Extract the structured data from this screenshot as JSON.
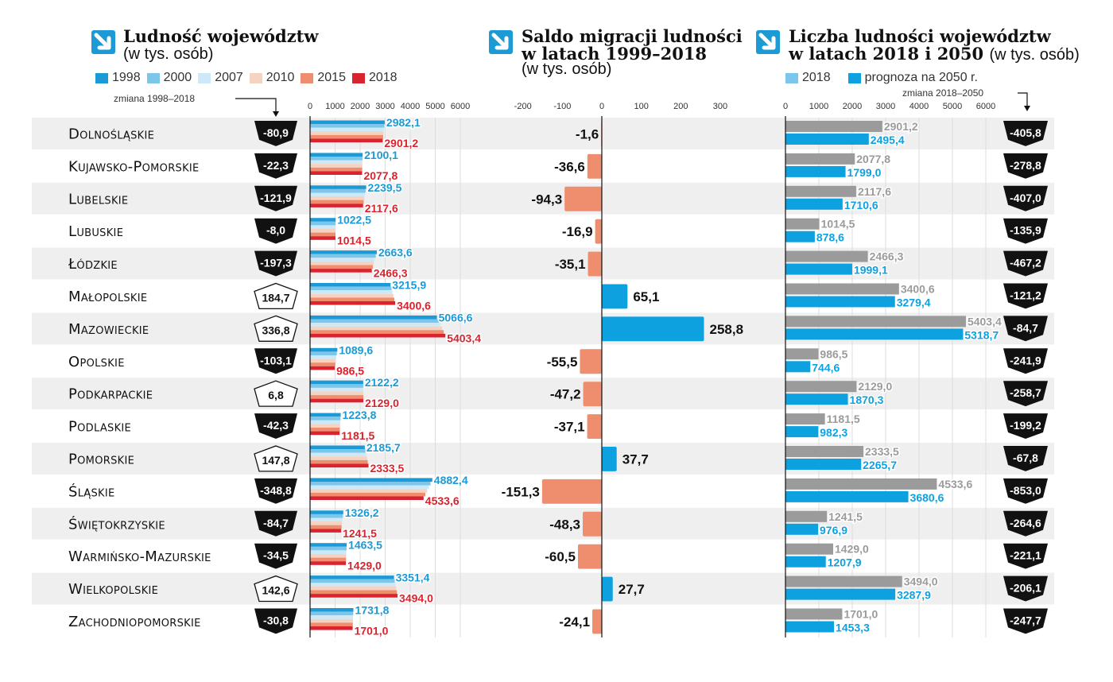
{
  "panels": {
    "population": {
      "title": "Ludność  województw",
      "subtitle": "(w tys. osób)",
      "change_note": "zmiana 1998–2018",
      "axis_ticks": [
        "0",
        "1000",
        "2000",
        "3000",
        "4000",
        "5000",
        "6000"
      ]
    },
    "migration": {
      "title_line1": "Saldo migracji ludności",
      "title_line2": "w latach 1999–2018",
      "subtitle": "(w tys. osób)",
      "axis_ticks": [
        "-200",
        "-100",
        "0",
        "100",
        "200",
        "300"
      ]
    },
    "forecast": {
      "title_line1": "Liczba  ludności województw",
      "title_line2": "w latach 2018 i 2050",
      "subtitle": "(w tys. osób)",
      "change_note": "zmiana 2018–2050",
      "legend": [
        "2018",
        "prognoza na 2050 r."
      ],
      "axis_ticks": [
        "0",
        "1000",
        "2000",
        "3000",
        "4000",
        "5000",
        "6000"
      ]
    }
  },
  "legend_years": [
    "1998",
    "2000",
    "2007",
    "2010",
    "2015",
    "2018"
  ],
  "colors": {
    "y1998": "#1b9ad6",
    "y2000": "#7cc6ec",
    "y2007": "#cde9f7",
    "y2010": "#f6d2c0",
    "y2015": "#ee8e6e",
    "y2018": "#d9232e",
    "migration_pos": "#0da1e0",
    "migration_neg": "#ee8e6e",
    "grey2018": "#9b9b9b",
    "blue2050": "#0da1e0",
    "band": "#efefef",
    "icon": "#1b9ad6"
  },
  "chart_data": [
    {
      "type": "bar",
      "title": "Ludność województw (w tys. osób)",
      "xlim": [
        0,
        6000
      ],
      "series_shown": [
        "1998",
        "2000",
        "2007",
        "2010",
        "2015",
        "2018"
      ],
      "categories": [
        "Dolnośląskie",
        "Kujawsko-Pomorskie",
        "Lubelskie",
        "Lubuskie",
        "Łódzkie",
        "Małopolskie",
        "Mazowieckie",
        "Opolskie",
        "Podkarpackie",
        "Podlaskie",
        "Pomorskie",
        "Śląskie",
        "Świętokrzyskie",
        "Warmińsko-Mazurskie",
        "Wielkopolskie",
        "Zachodniopomorskie"
      ],
      "series": [
        {
          "name": "1998",
          "values": [
            2982.1,
            2100.1,
            2239.5,
            1022.5,
            2663.6,
            3215.9,
            5066.6,
            1089.6,
            2122.2,
            1223.8,
            2185.7,
            4882.4,
            1326.2,
            1463.5,
            3351.4,
            1731.8
          ],
          "labels": [
            "2982,1",
            "2100,1",
            "2239,5",
            "1022,5",
            "2663,6",
            "3215,9",
            "5066,6",
            "1089,6",
            "2122,2",
            "1223,8",
            "2185,7",
            "4882,4",
            "1326,2",
            "1463,5",
            "3351,4",
            "1731,8"
          ]
        },
        {
          "name": "2018",
          "values": [
            2901.2,
            2077.8,
            2117.6,
            1014.5,
            2466.3,
            3400.6,
            5403.4,
            986.5,
            2129.0,
            1181.5,
            2333.5,
            4533.6,
            1241.5,
            1429.0,
            3494.0,
            1701.0
          ],
          "labels": [
            "2901,2",
            "2077,8",
            "2117,6",
            "1014,5",
            "2466,3",
            "3400,6",
            "5403,4",
            "986,5",
            "2129,0",
            "1181,5",
            "2333,5",
            "4533,6",
            "1241,5",
            "1429,0",
            "3494,0",
            "1701,0"
          ]
        }
      ],
      "change_1998_2018": {
        "values": [
          -80.9,
          -22.3,
          -121.9,
          -8.0,
          -197.3,
          184.7,
          336.8,
          -103.1,
          6.8,
          -42.3,
          147.8,
          -348.8,
          -84.7,
          -34.5,
          142.6,
          -30.8
        ],
        "labels": [
          "-80,9",
          "-22,3",
          "-121,9",
          "-8,0",
          "-197,3",
          "184,7",
          "336,8",
          "-103,1",
          "6,8",
          "-42,3",
          "147,8",
          "-348,8",
          "-84,7",
          "-34,5",
          "142,6",
          "-30,8"
        ]
      }
    },
    {
      "type": "bar",
      "title": "Saldo migracji ludności w latach 1999–2018 (w tys. osób)",
      "xlim": [
        -200,
        300
      ],
      "values": [
        -1.6,
        -36.6,
        -94.3,
        -16.9,
        -35.1,
        65.1,
        258.8,
        -55.5,
        -47.2,
        -37.1,
        37.7,
        -151.3,
        -48.3,
        -60.5,
        27.7,
        -24.1
      ],
      "labels": [
        "-1,6",
        "-36,6",
        "-94,3",
        "-16,9",
        "-35,1",
        "65,1",
        "258,8",
        "-55,5",
        "-47,2",
        "-37,1",
        "37,7",
        "-151,3",
        "-48,3",
        "-60,5",
        "27,7",
        "-24,1"
      ]
    },
    {
      "type": "bar",
      "title": "Liczba ludności województw w latach 2018 i 2050 (w tys. osób)",
      "xlim": [
        0,
        6000
      ],
      "series": [
        {
          "name": "2018",
          "values": [
            2901.2,
            2077.8,
            2117.6,
            1014.5,
            2466.3,
            3400.6,
            5403.4,
            986.5,
            2129.0,
            1181.5,
            2333.5,
            4533.6,
            1241.5,
            1429.0,
            3494.0,
            1701.0
          ],
          "labels": [
            "2901,2",
            "2077,8",
            "2117,6",
            "1014,5",
            "2466,3",
            "3400,6",
            "5403,4",
            "986,5",
            "2129,0",
            "1181,5",
            "2333,5",
            "4533,6",
            "1241,5",
            "1429,0",
            "3494,0",
            "1701,0"
          ]
        },
        {
          "name": "prognoza na 2050 r.",
          "values": [
            2495.4,
            1799.0,
            1710.6,
            878.6,
            1999.1,
            3279.4,
            5318.7,
            744.6,
            1870.3,
            982.3,
            2265.7,
            3680.6,
            976.9,
            1207.9,
            3287.9,
            1453.3
          ],
          "labels": [
            "2495,4",
            "1799,0",
            "1710,6",
            "878,6",
            "1999,1",
            "3279,4",
            "5318,7",
            "744,6",
            "1870,3",
            "982,3",
            "2265,7",
            "3680,6",
            "976,9",
            "1207,9",
            "3287,9",
            "1453,3"
          ]
        }
      ],
      "change_2018_2050": {
        "values": [
          -405.8,
          -278.8,
          -407.0,
          -135.9,
          -467.2,
          -121.2,
          -84.7,
          -241.9,
          -258.7,
          -199.2,
          -67.8,
          -853.0,
          -264.6,
          -221.1,
          -206.1,
          -247.7
        ],
        "labels": [
          "-405,8",
          "-278,8",
          "-407,0",
          "-135,9",
          "-467,2",
          "-121,2",
          "-84,7",
          "-241,9",
          "-258,7",
          "-199,2",
          "-67,8",
          "-853,0",
          "-264,6",
          "-221,1",
          "-206,1",
          "-247,7"
        ]
      }
    }
  ]
}
